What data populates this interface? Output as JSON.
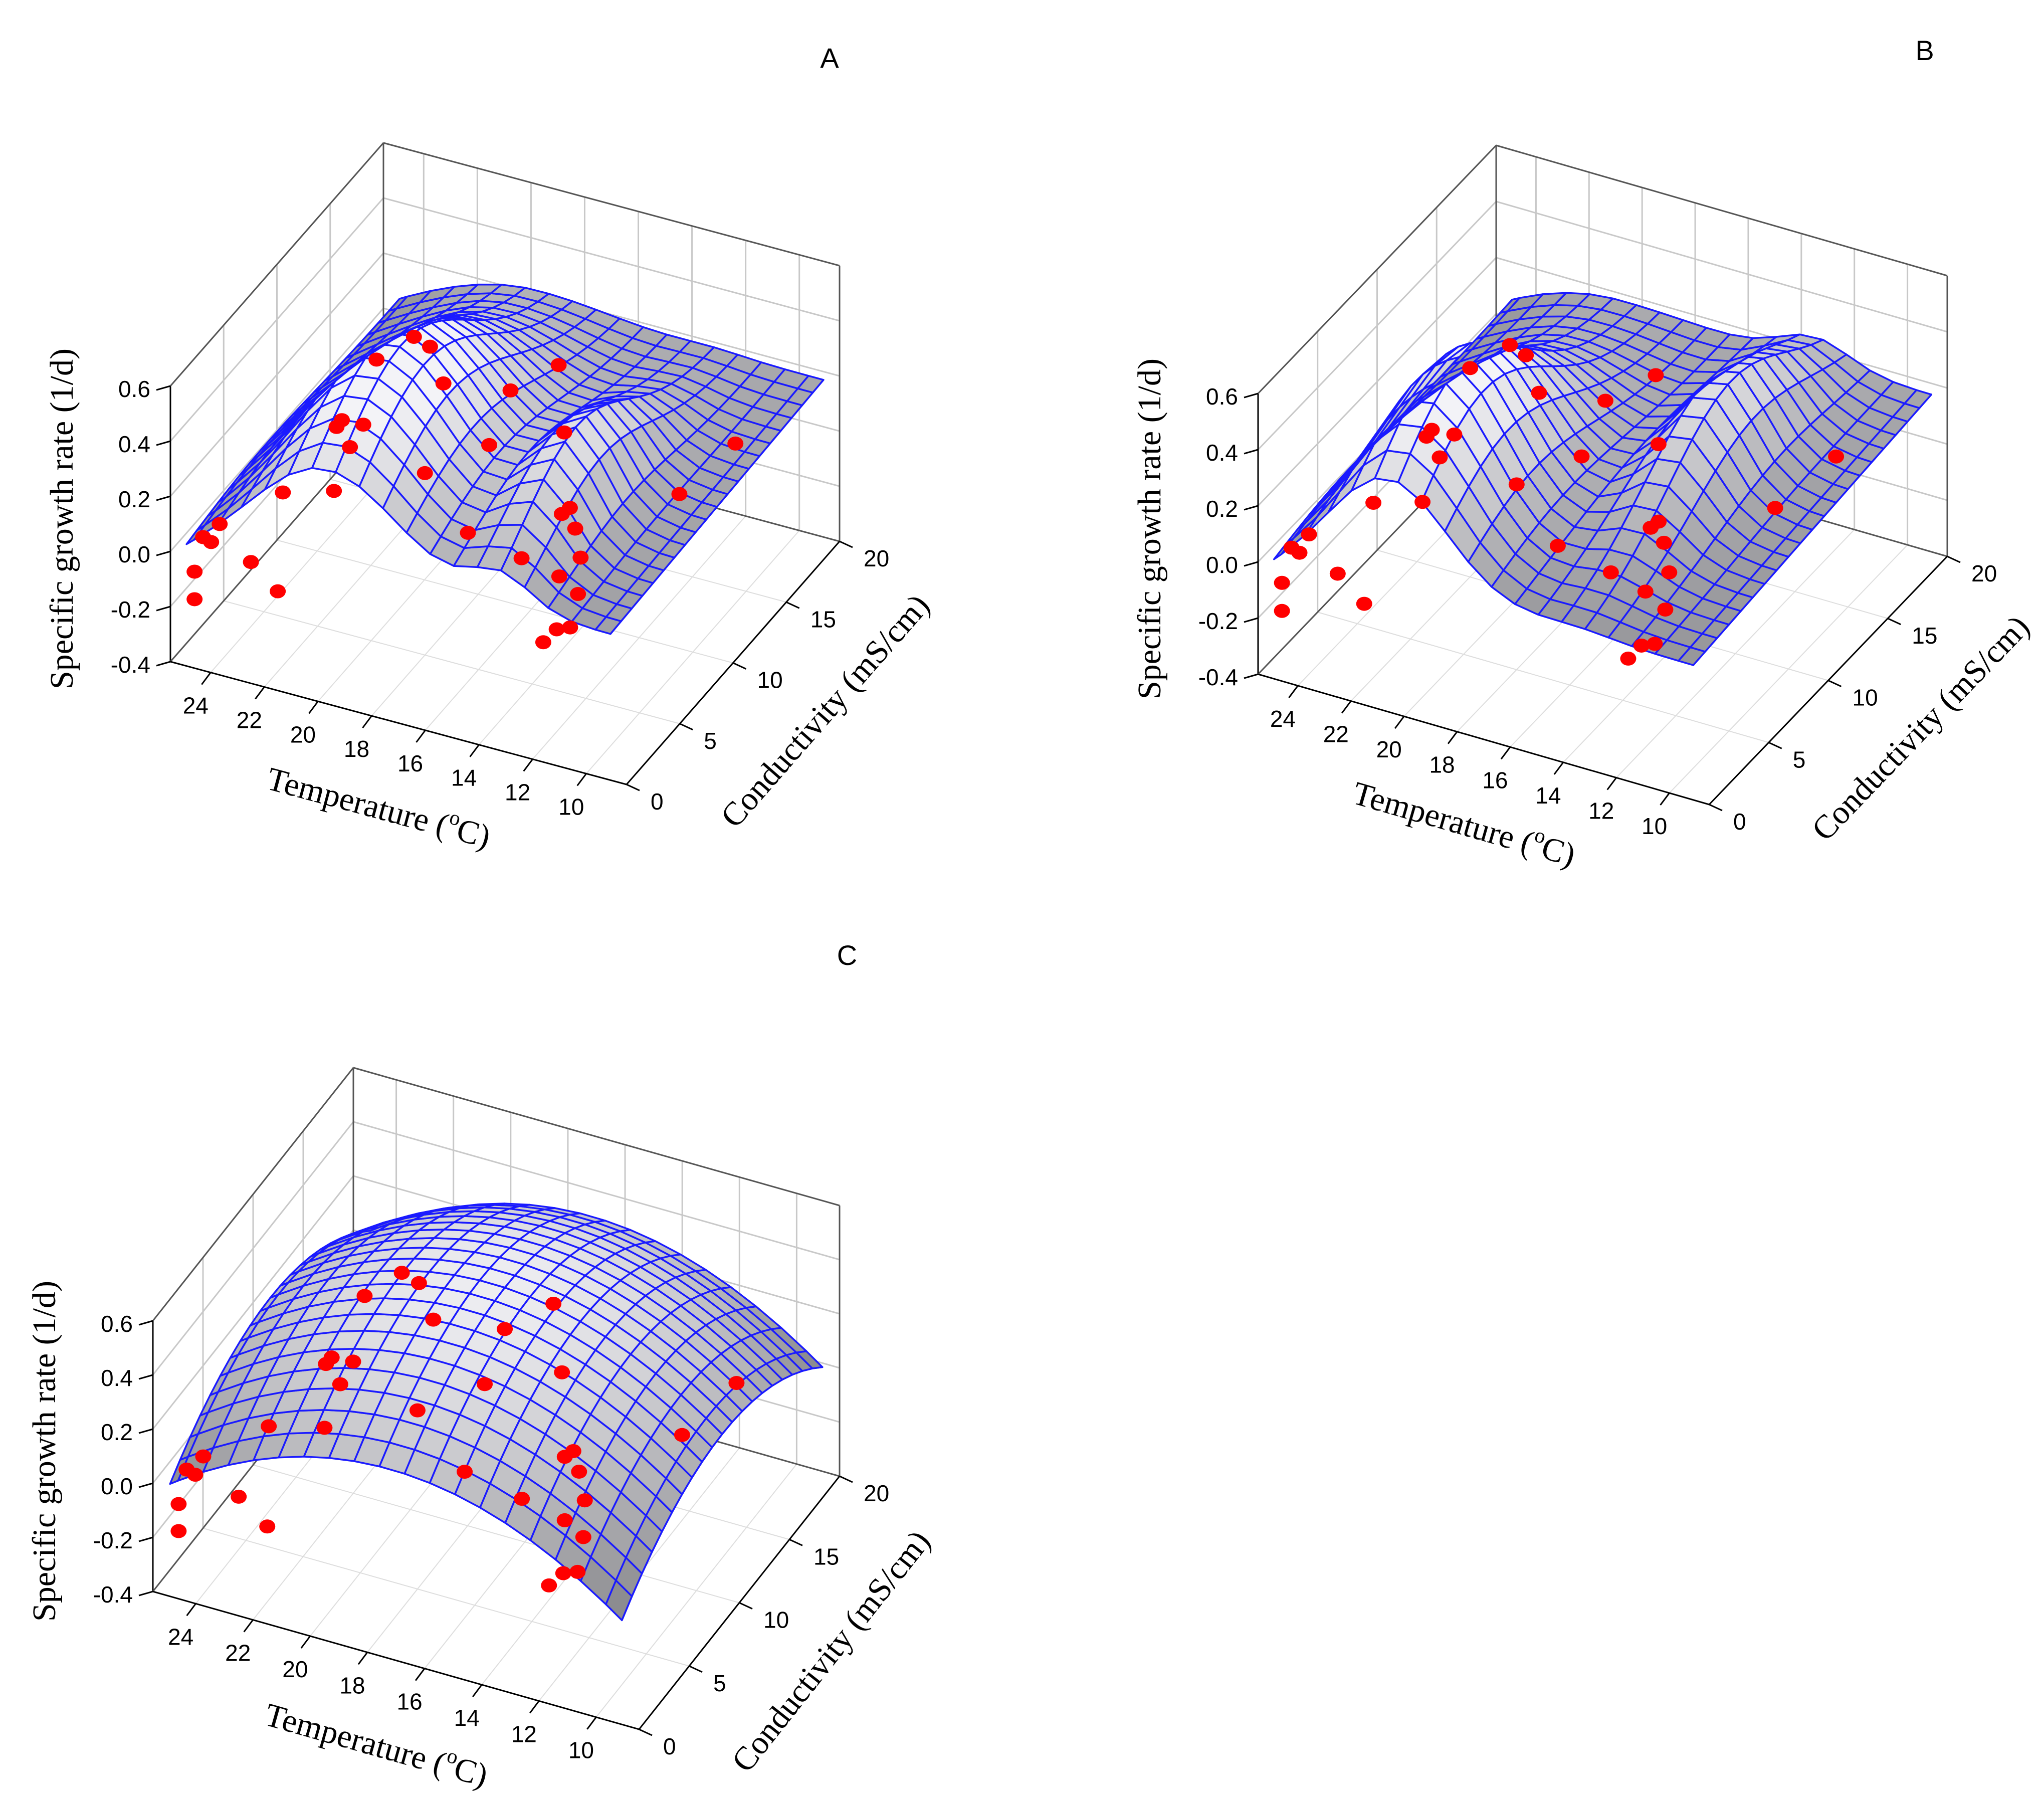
{
  "figure": {
    "description_free": true,
    "colors": {
      "surface_top": "#f0f0f3",
      "surface_bottom": "#7c7c80",
      "mesh": "#1a1aff",
      "points": "#ff0000",
      "grid": "#c8c8c8",
      "axis": "#000000"
    }
  },
  "chart_data": [
    {
      "panel": "A",
      "type": "surface3d",
      "model": "double-peaked",
      "zlabel": "Specific growth rate (1/d)",
      "xlabel": "Temperature (oC)",
      "ylabel": "Conductivity (mS/cm)",
      "xlabel_main": "Temperature (",
      "xlabel_sup": "o",
      "xlabel_end": "C)",
      "x_ticks": [
        "24",
        "22",
        "20",
        "18",
        "16",
        "14",
        "12",
        "10"
      ],
      "y_ticks": [
        "0",
        "5",
        "10",
        "15",
        "20"
      ],
      "z_ticks": [
        "-0.4",
        "-0.2",
        "0.0",
        "0.2",
        "0.4",
        "0.6"
      ],
      "xlim": [
        8.5,
        25.5
      ],
      "ylim": [
        0,
        20
      ],
      "zlim": [
        -0.4,
        0.6
      ],
      "points": [
        {
          "t": 24.6,
          "c": 0,
          "mu": -0.15
        },
        {
          "t": 24.6,
          "c": 0,
          "mu": -0.05
        },
        {
          "t": 24.6,
          "c": 0.8,
          "mu": 0.04
        },
        {
          "t": 24.3,
          "c": 0.8,
          "mu": 0.03
        },
        {
          "t": 24.3,
          "c": 1.6,
          "mu": 0.06
        },
        {
          "t": 22.5,
          "c": 0,
          "mu": 0.04
        },
        {
          "t": 21.5,
          "c": 0,
          "mu": -0.04
        },
        {
          "t": 22.5,
          "c": 3,
          "mu": 0.16
        },
        {
          "t": 20.5,
          "c": 3,
          "mu": 0.45
        },
        {
          "t": 20.3,
          "c": 3,
          "mu": 0.48
        },
        {
          "t": 20.0,
          "c": 3,
          "mu": 0.39
        },
        {
          "t": 20.2,
          "c": 2,
          "mu": 0.27
        },
        {
          "t": 19.9,
          "c": 4,
          "mu": 0.43
        },
        {
          "t": 20.2,
          "c": 6,
          "mu": 0.57
        },
        {
          "t": 19.6,
          "c": 8,
          "mu": 0.58
        },
        {
          "t": 19.0,
          "c": 8,
          "mu": 0.56
        },
        {
          "t": 18.5,
          "c": 8,
          "mu": 0.44
        },
        {
          "t": 18.0,
          "c": 5,
          "mu": 0.26
        },
        {
          "t": 16.0,
          "c": 8,
          "mu": 0.48
        },
        {
          "t": 16.0,
          "c": 6,
          "mu": 0.37
        },
        {
          "t": 16.0,
          "c": 4,
          "mu": 0.14
        },
        {
          "t": 15.0,
          "c": 10,
          "mu": 0.51
        },
        {
          "t": 14.0,
          "c": 8,
          "mu": 0.38
        },
        {
          "t": 14.0,
          "c": 4,
          "mu": 0.1
        },
        {
          "t": 12.5,
          "c": 4,
          "mu": 0.3
        },
        {
          "t": 12.2,
          "c": 4,
          "mu": 0.33
        },
        {
          "t": 12.0,
          "c": 4,
          "mu": 0.26
        },
        {
          "t": 11.8,
          "c": 4,
          "mu": 0.16
        },
        {
          "t": 11.5,
          "c": 3,
          "mu": 0.08
        },
        {
          "t": 11.5,
          "c": 1,
          "mu": 0.04
        },
        {
          "t": 12.0,
          "c": 1,
          "mu": -0.02
        },
        {
          "t": 11.0,
          "c": 1,
          "mu": 0.06
        },
        {
          "t": 10.5,
          "c": 10,
          "mu": 0.16
        },
        {
          "t": 10.0,
          "c": 14,
          "mu": 0.18
        },
        {
          "t": 11.8,
          "c": 2,
          "mu": 0.18
        }
      ]
    },
    {
      "panel": "B",
      "type": "surface3d",
      "model": "peak-with-ridge",
      "zlabel": "Specific growth rate (1/d)",
      "xlabel": "Temperature (oC)",
      "ylabel": "Conductivity (mS/cm)",
      "xlabel_main": "Temperature (",
      "xlabel_sup": "o",
      "xlabel_end": "C)",
      "x_ticks": [
        "24",
        "22",
        "20",
        "18",
        "16",
        "14",
        "12",
        "10"
      ],
      "y_ticks": [
        "0",
        "5",
        "10",
        "15",
        "20"
      ],
      "z_ticks": [
        "-0.4",
        "-0.2",
        "0.0",
        "0.2",
        "0.4",
        "0.6"
      ],
      "xlim": [
        8.5,
        25.5
      ],
      "ylim": [
        0,
        20
      ],
      "zlim": [
        -0.4,
        0.6
      ],
      "points": [
        {
          "t": 24.6,
          "c": 0,
          "mu": -0.15
        },
        {
          "t": 24.6,
          "c": 0,
          "mu": -0.05
        },
        {
          "t": 24.6,
          "c": 0.8,
          "mu": 0.04
        },
        {
          "t": 24.3,
          "c": 0.8,
          "mu": 0.03
        },
        {
          "t": 24.3,
          "c": 1.6,
          "mu": 0.06
        },
        {
          "t": 22.5,
          "c": 0,
          "mu": 0.04
        },
        {
          "t": 21.5,
          "c": 0,
          "mu": -0.04
        },
        {
          "t": 22.5,
          "c": 3,
          "mu": 0.16
        },
        {
          "t": 20.5,
          "c": 3,
          "mu": 0.45
        },
        {
          "t": 20.3,
          "c": 3,
          "mu": 0.48
        },
        {
          "t": 20.0,
          "c": 3,
          "mu": 0.39
        },
        {
          "t": 20.2,
          "c": 2,
          "mu": 0.27
        },
        {
          "t": 19.9,
          "c": 4,
          "mu": 0.43
        },
        {
          "t": 20.2,
          "c": 6,
          "mu": 0.57
        },
        {
          "t": 19.6,
          "c": 8,
          "mu": 0.58
        },
        {
          "t": 19.0,
          "c": 8,
          "mu": 0.56
        },
        {
          "t": 18.5,
          "c": 8,
          "mu": 0.44
        },
        {
          "t": 18.0,
          "c": 5,
          "mu": 0.26
        },
        {
          "t": 16.0,
          "c": 8,
          "mu": 0.48
        },
        {
          "t": 16.0,
          "c": 6,
          "mu": 0.37
        },
        {
          "t": 16.0,
          "c": 4,
          "mu": 0.14
        },
        {
          "t": 15.0,
          "c": 10,
          "mu": 0.51
        },
        {
          "t": 14.0,
          "c": 8,
          "mu": 0.38
        },
        {
          "t": 14.0,
          "c": 4,
          "mu": 0.1
        },
        {
          "t": 12.5,
          "c": 4,
          "mu": 0.3
        },
        {
          "t": 12.2,
          "c": 4,
          "mu": 0.33
        },
        {
          "t": 12.0,
          "c": 4,
          "mu": 0.26
        },
        {
          "t": 11.8,
          "c": 4,
          "mu": 0.16
        },
        {
          "t": 11.5,
          "c": 3,
          "mu": 0.08
        },
        {
          "t": 11.5,
          "c": 1,
          "mu": 0.04
        },
        {
          "t": 12.0,
          "c": 1,
          "mu": -0.02
        },
        {
          "t": 11.0,
          "c": 1,
          "mu": 0.06
        },
        {
          "t": 10.5,
          "c": 10,
          "mu": 0.16
        },
        {
          "t": 10.0,
          "c": 14,
          "mu": 0.18
        },
        {
          "t": 11.8,
          "c": 2,
          "mu": 0.18
        }
      ]
    },
    {
      "panel": "C",
      "type": "surface3d",
      "model": "paraboloid",
      "zlabel": "Specific growth rate (1/d)",
      "xlabel": "Temperature (oC)",
      "ylabel": "Conductivity (mS/cm)",
      "xlabel_main": "Temperature (",
      "xlabel_sup": "o",
      "xlabel_end": "C)",
      "x_ticks": [
        "24",
        "22",
        "20",
        "18",
        "16",
        "14",
        "12",
        "10"
      ],
      "y_ticks": [
        "0",
        "5",
        "10",
        "15",
        "20"
      ],
      "z_ticks": [
        "-0.4",
        "-0.2",
        "0.0",
        "0.2",
        "0.4",
        "0.6"
      ],
      "xlim": [
        8.5,
        25.5
      ],
      "ylim": [
        0,
        20
      ],
      "zlim": [
        -0.4,
        0.6
      ],
      "points": [
        {
          "t": 24.6,
          "c": 0,
          "mu": -0.15
        },
        {
          "t": 24.6,
          "c": 0,
          "mu": -0.05
        },
        {
          "t": 24.6,
          "c": 0.8,
          "mu": 0.04
        },
        {
          "t": 24.3,
          "c": 0.8,
          "mu": 0.03
        },
        {
          "t": 24.3,
          "c": 1.6,
          "mu": 0.06
        },
        {
          "t": 22.5,
          "c": 0,
          "mu": 0.04
        },
        {
          "t": 21.5,
          "c": 0,
          "mu": -0.04
        },
        {
          "t": 22.5,
          "c": 3,
          "mu": 0.16
        },
        {
          "t": 20.5,
          "c": 3,
          "mu": 0.45
        },
        {
          "t": 20.3,
          "c": 3,
          "mu": 0.48
        },
        {
          "t": 20.0,
          "c": 3,
          "mu": 0.39
        },
        {
          "t": 20.2,
          "c": 2,
          "mu": 0.27
        },
        {
          "t": 19.9,
          "c": 4,
          "mu": 0.43
        },
        {
          "t": 20.2,
          "c": 6,
          "mu": 0.57
        },
        {
          "t": 19.6,
          "c": 8,
          "mu": 0.58
        },
        {
          "t": 19.0,
          "c": 8,
          "mu": 0.56
        },
        {
          "t": 18.5,
          "c": 8,
          "mu": 0.44
        },
        {
          "t": 18.0,
          "c": 5,
          "mu": 0.26
        },
        {
          "t": 16.0,
          "c": 8,
          "mu": 0.48
        },
        {
          "t": 16.0,
          "c": 6,
          "mu": 0.37
        },
        {
          "t": 16.0,
          "c": 4,
          "mu": 0.14
        },
        {
          "t": 15.0,
          "c": 10,
          "mu": 0.51
        },
        {
          "t": 14.0,
          "c": 8,
          "mu": 0.38
        },
        {
          "t": 14.0,
          "c": 4,
          "mu": 0.1
        },
        {
          "t": 12.5,
          "c": 4,
          "mu": 0.3
        },
        {
          "t": 12.2,
          "c": 4,
          "mu": 0.33
        },
        {
          "t": 12.0,
          "c": 4,
          "mu": 0.26
        },
        {
          "t": 11.8,
          "c": 4,
          "mu": 0.16
        },
        {
          "t": 11.5,
          "c": 3,
          "mu": 0.08
        },
        {
          "t": 11.5,
          "c": 1,
          "mu": 0.04
        },
        {
          "t": 12.0,
          "c": 1,
          "mu": -0.02
        },
        {
          "t": 11.0,
          "c": 1,
          "mu": 0.06
        },
        {
          "t": 10.5,
          "c": 10,
          "mu": 0.16
        },
        {
          "t": 10.0,
          "c": 14,
          "mu": 0.18
        },
        {
          "t": 11.8,
          "c": 2,
          "mu": 0.18
        }
      ]
    }
  ]
}
